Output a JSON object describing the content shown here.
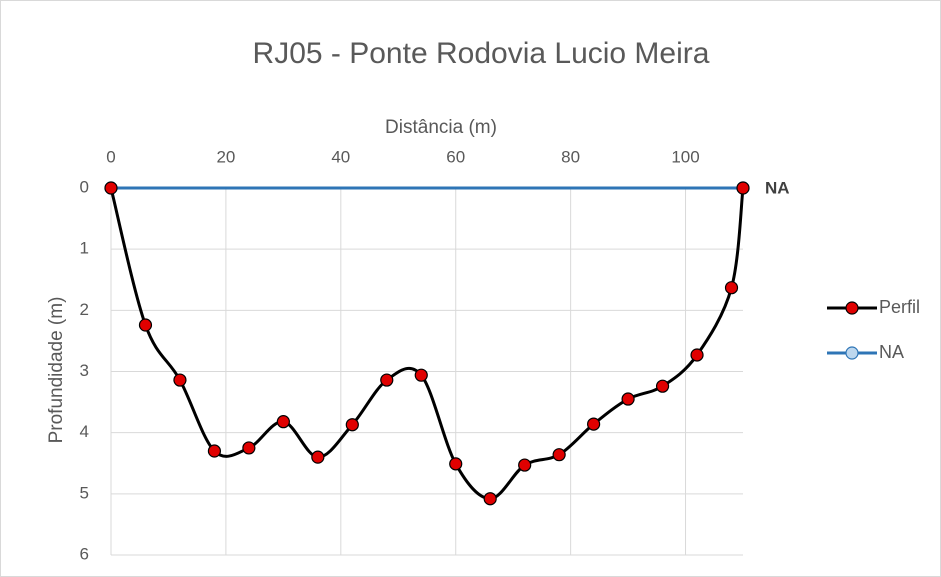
{
  "chart_data": {
    "type": "line",
    "title": "RJ05 - Ponte Rodovia Lucio Meira",
    "xlabel": "Distância (m)",
    "ylabel": "Profundidade (m)",
    "xlim": [
      0,
      110
    ],
    "xticks": [
      0,
      20,
      40,
      60,
      80,
      100
    ],
    "ylim": [
      0,
      6
    ],
    "yticks": [
      0,
      1,
      2,
      3,
      4,
      5,
      6
    ],
    "y_inverted": true,
    "x_axis_position": "top",
    "grid": true,
    "smooth": true,
    "legend": "right",
    "series": [
      {
        "name": "Perfil",
        "color": "#000000",
        "marker_color": "#e00000",
        "x": [
          0,
          6,
          12,
          18,
          24,
          30,
          36,
          42,
          48,
          54,
          60,
          66,
          72,
          78,
          84,
          90,
          96,
          102,
          108,
          110
        ],
        "values": [
          0,
          2.24,
          3.14,
          4.3,
          4.25,
          3.82,
          4.4,
          3.87,
          3.14,
          3.06,
          4.51,
          5.08,
          4.53,
          4.36,
          3.86,
          3.45,
          3.24,
          2.73,
          1.63,
          0
        ]
      },
      {
        "name": "NA",
        "color": "#2e75b6",
        "marker_color": "#bdd7ee",
        "x": [
          0,
          110
        ],
        "values": [
          0,
          0
        ]
      }
    ],
    "annotations": [
      {
        "text": "NA",
        "x": 110,
        "y": 0
      }
    ]
  }
}
